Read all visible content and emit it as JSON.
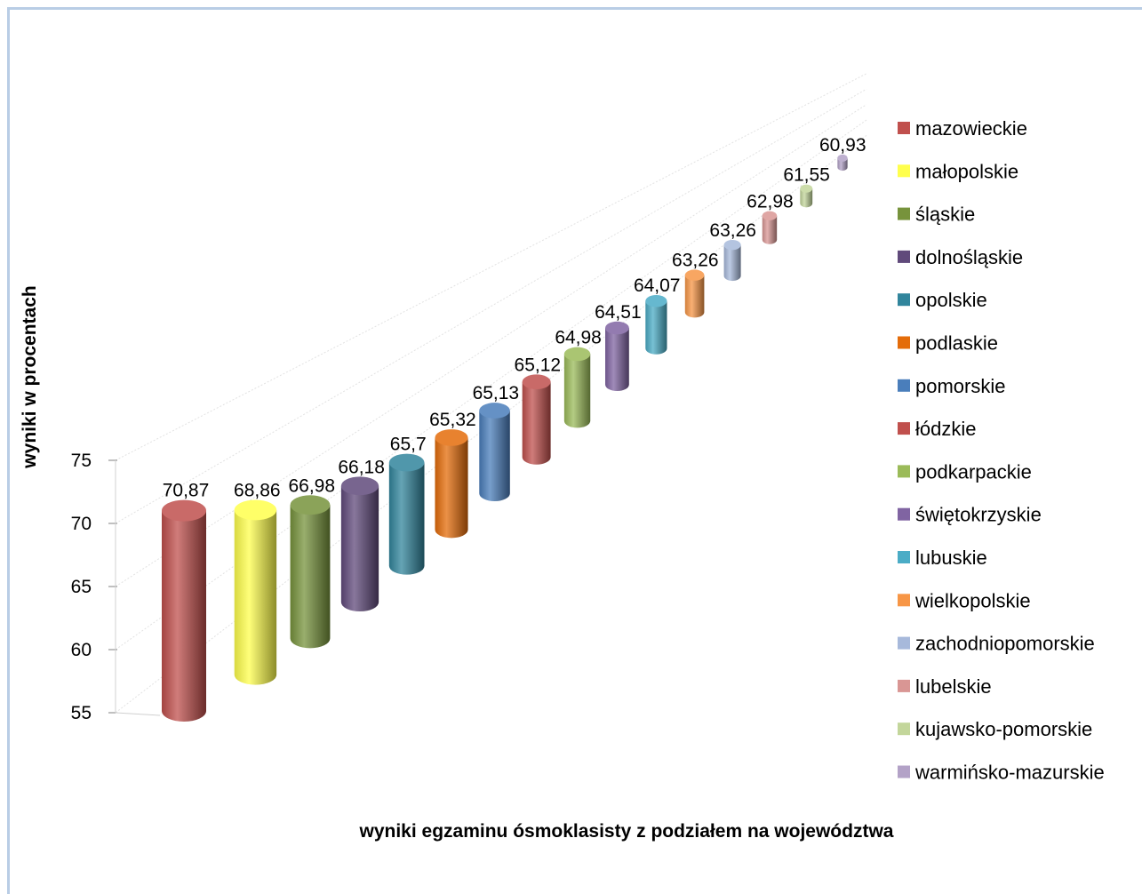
{
  "chart_data": {
    "type": "bar",
    "style": "3d-cylinder",
    "xlabel": "wyniki egzaminu ósmoklasisty z podziałem na województwa",
    "ylabel": "wyniki w procentach",
    "ylim": [
      55,
      75
    ],
    "yticks": [
      55,
      60,
      65,
      70,
      75
    ],
    "legend_position": "right",
    "series": [
      {
        "name": "mazowieckie",
        "value": 70.87,
        "label": "70,87",
        "color": "#c0504d"
      },
      {
        "name": "małopolskie",
        "value": 68.86,
        "label": "68,86",
        "color": "#ffff4d"
      },
      {
        "name": "śląskie",
        "value": 66.98,
        "label": "66,98",
        "color": "#77933c"
      },
      {
        "name": "dolnośląskie",
        "value": 66.18,
        "label": "66,18",
        "color": "#604a7b"
      },
      {
        "name": "opolskie",
        "value": 65.7,
        "label": "65,7",
        "color": "#31859c"
      },
      {
        "name": "podlaskie",
        "value": 65.32,
        "label": "65,32",
        "color": "#e46c0a"
      },
      {
        "name": "pomorskie",
        "value": 65.13,
        "label": "65,13",
        "color": "#4a7ebb"
      },
      {
        "name": "łódzkie",
        "value": 65.12,
        "label": "65,12",
        "color": "#c0504d"
      },
      {
        "name": "podkarpackie",
        "value": 64.98,
        "label": "64,98",
        "color": "#9bbb59"
      },
      {
        "name": "świętokrzyskie",
        "value": 64.51,
        "label": "64,51",
        "color": "#8064a2"
      },
      {
        "name": "lubuskie",
        "value": 64.07,
        "label": "64,07",
        "color": "#4bacc6"
      },
      {
        "name": "wielkopolskie",
        "value": 63.26,
        "label": "63,26",
        "color": "#f79646"
      },
      {
        "name": "zachodniopomorskie",
        "value": 63.26,
        "label": "63,26",
        "color": "#a7b9db"
      },
      {
        "name": "lubelskie",
        "value": 62.98,
        "label": "62,98",
        "color": "#d99694"
      },
      {
        "name": "kujawsko-pomorskie",
        "value": 61.55,
        "label": "61,55",
        "color": "#c3d69b"
      },
      {
        "name": "warmińsko-mazurskie",
        "value": 60.93,
        "label": "60,93",
        "color": "#b3a2c7"
      }
    ]
  }
}
